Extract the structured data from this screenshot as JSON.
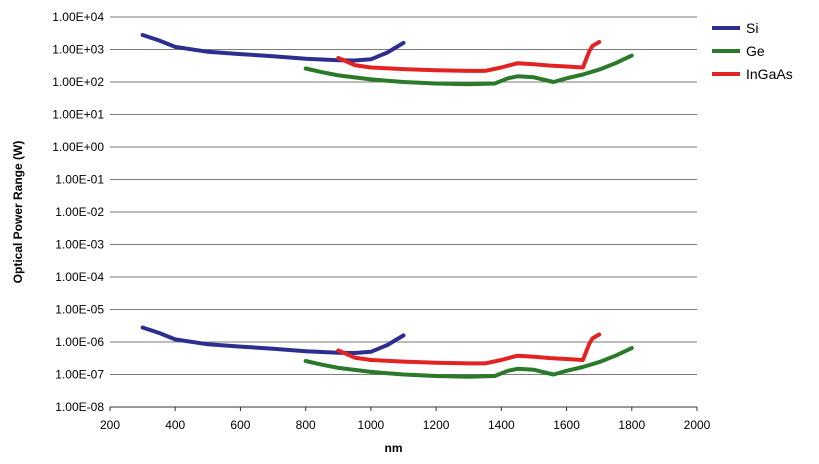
{
  "chart_data": {
    "type": "line",
    "title": "",
    "xlabel": "nm",
    "ylabel": "Optical Power Range (W)",
    "y_scale": "log",
    "grid": true,
    "legend_position": "top-right",
    "xlim": [
      200,
      2000
    ],
    "ylim": [
      1e-08,
      10000.0
    ],
    "x_ticks": [
      200,
      400,
      600,
      800,
      1000,
      1200,
      1400,
      1600,
      1800,
      2000
    ],
    "x_tick_labels": [
      "200",
      "400",
      "600",
      "800",
      "1000",
      "1200",
      "1400",
      "1600",
      "1800",
      "2000"
    ],
    "y_ticks": [
      1e-08,
      1e-07,
      1e-06,
      1e-05,
      0.0001,
      0.001,
      0.01,
      0.1,
      1.0,
      10.0,
      100.0,
      1000.0,
      10000.0
    ],
    "y_tick_labels": [
      "1.00E-08",
      "1.00E-07",
      "1.00E-06",
      "1.00E-05",
      "1.00E-04",
      "1.00E-03",
      "1.00E-02",
      "1.00E-01",
      "1.00E+00",
      "1.00E+01",
      "1.00E+02",
      "1.00E+03",
      "1.00E+04"
    ],
    "series": [
      {
        "name": "Si",
        "color": "#2e2e8f",
        "part": "upper",
        "x": [
          300,
          350,
          400,
          500,
          600,
          700,
          800,
          900,
          950,
          1000,
          1050,
          1100
        ],
        "y": [
          2800,
          1900,
          1200,
          850,
          720,
          620,
          520,
          470,
          460,
          500,
          800,
          1600
        ]
      },
      {
        "name": "Si",
        "color": "#2e2e8f",
        "part": "lower",
        "x": [
          300,
          350,
          400,
          500,
          600,
          700,
          800,
          900,
          950,
          1000,
          1050,
          1100
        ],
        "y": [
          2.8e-06,
          1.9e-06,
          1.2e-06,
          8.5e-07,
          7.2e-07,
          6.2e-07,
          5.2e-07,
          4.7e-07,
          4.6e-07,
          5e-07,
          8e-07,
          1.6e-06
        ]
      },
      {
        "name": "Ge",
        "color": "#2a7a2a",
        "part": "upper",
        "x": [
          800,
          850,
          900,
          1000,
          1100,
          1200,
          1300,
          1380,
          1420,
          1450,
          1500,
          1560,
          1600,
          1650,
          1700,
          1750,
          1800
        ],
        "y": [
          260,
          200,
          160,
          120,
          100,
          90,
          85,
          90,
          130,
          150,
          140,
          100,
          130,
          170,
          240,
          380,
          650
        ]
      },
      {
        "name": "Ge",
        "color": "#2a7a2a",
        "part": "lower",
        "x": [
          800,
          850,
          900,
          1000,
          1100,
          1200,
          1300,
          1380,
          1420,
          1450,
          1500,
          1560,
          1600,
          1650,
          1700,
          1750,
          1800
        ],
        "y": [
          2.6e-07,
          2e-07,
          1.6e-07,
          1.2e-07,
          1e-07,
          9e-08,
          8.5e-08,
          9e-08,
          1.3e-07,
          1.5e-07,
          1.4e-07,
          1e-07,
          1.3e-07,
          1.7e-07,
          2.4e-07,
          3.8e-07,
          6.5e-07
        ]
      },
      {
        "name": "InGaAs",
        "color": "#e32222",
        "part": "upper",
        "x": [
          900,
          950,
          1000,
          1100,
          1200,
          1300,
          1350,
          1400,
          1450,
          1500,
          1550,
          1600,
          1650,
          1670,
          1680,
          1700
        ],
        "y": [
          550,
          330,
          280,
          250,
          230,
          220,
          220,
          280,
          380,
          350,
          320,
          300,
          280,
          900,
          1300,
          1700
        ]
      },
      {
        "name": "InGaAs",
        "color": "#e32222",
        "part": "lower",
        "x": [
          900,
          950,
          1000,
          1100,
          1200,
          1300,
          1350,
          1400,
          1450,
          1500,
          1550,
          1600,
          1650,
          1670,
          1680,
          1700
        ],
        "y": [
          5.5e-07,
          3.3e-07,
          2.8e-07,
          2.5e-07,
          2.3e-07,
          2.2e-07,
          2.2e-07,
          2.8e-07,
          3.8e-07,
          3.5e-07,
          3.2e-07,
          3e-07,
          2.8e-07,
          9e-07,
          1.3e-06,
          1.7e-06
        ]
      }
    ],
    "legend": [
      {
        "label": "Si",
        "color": "#2e2e8f"
      },
      {
        "label": "Ge",
        "color": "#2a7a2a"
      },
      {
        "label": "InGaAs",
        "color": "#e32222"
      }
    ]
  }
}
